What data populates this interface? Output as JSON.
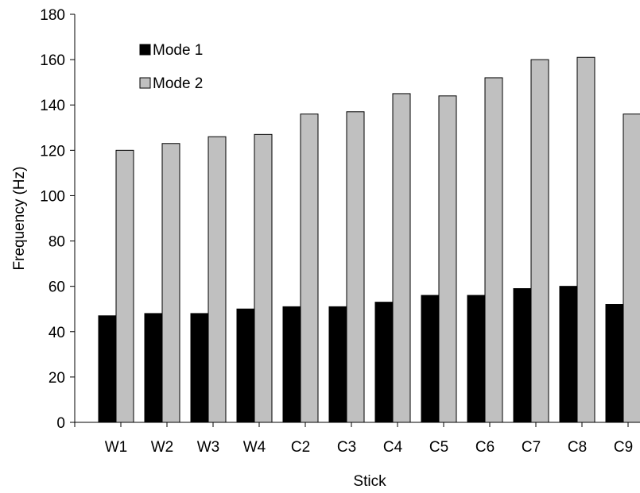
{
  "chart_data": {
    "type": "bar",
    "categories": [
      "W1",
      "W2",
      "W3",
      "W4",
      "C2",
      "C3",
      "C4",
      "C5",
      "C6",
      "C7",
      "C8",
      "C9"
    ],
    "series": [
      {
        "name": "Mode 1",
        "color": "#000000",
        "values": [
          47,
          48,
          48,
          50,
          51,
          51,
          53,
          56,
          56,
          59,
          60,
          52
        ]
      },
      {
        "name": "Mode 2",
        "color": "#c0c0c0",
        "values": [
          120,
          123,
          126,
          127,
          136,
          137,
          145,
          144,
          152,
          160,
          161,
          136
        ]
      }
    ],
    "xlabel": "Stick",
    "ylabel": "Frequency (Hz)",
    "ylim": [
      0,
      180
    ],
    "yticks": [
      "0",
      "20",
      "40",
      "60",
      "80",
      "100",
      "120",
      "140",
      "160",
      "180"
    ],
    "grid": false,
    "legend_position": "top-left"
  }
}
